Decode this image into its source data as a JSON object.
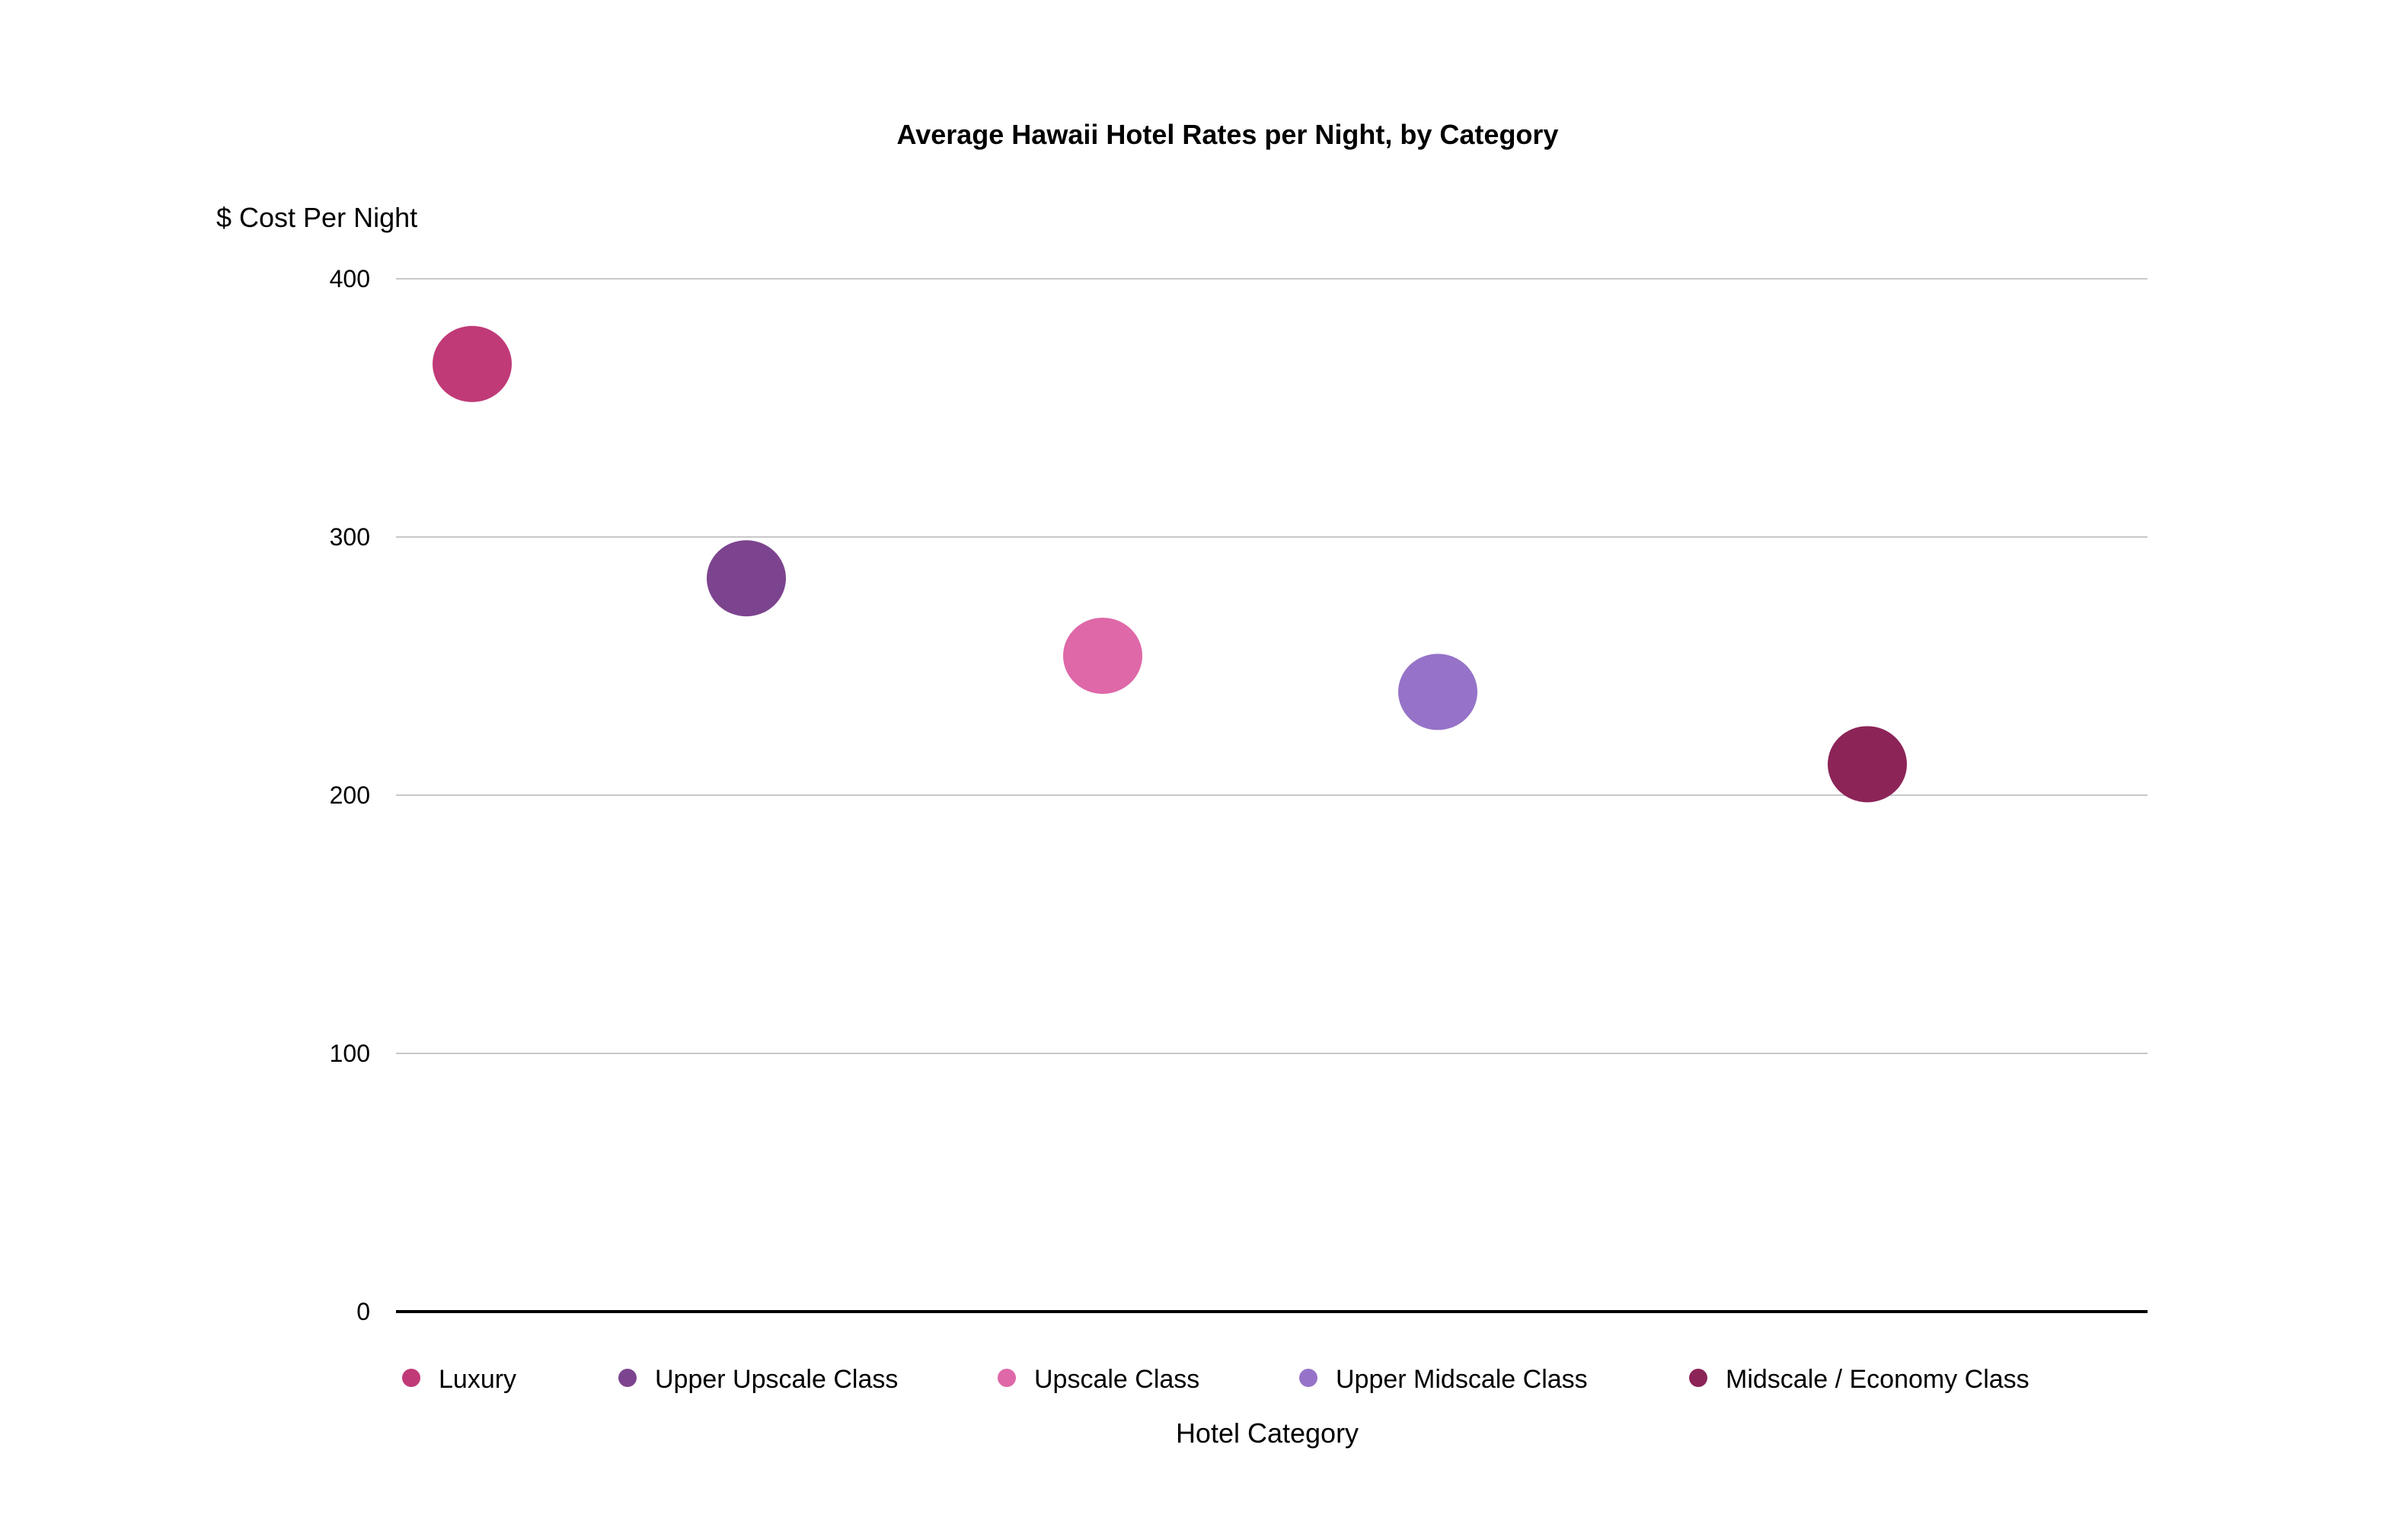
{
  "chart_data": {
    "type": "scatter",
    "title": "Average Hawaii Hotel Rates per Night, by Category",
    "xlabel": "Hotel Category",
    "ylabel": "$ Cost Per Night",
    "ylim": [
      0,
      400
    ],
    "yticks": [
      0,
      100,
      200,
      300,
      400
    ],
    "grid": true,
    "legend_position": "bottom",
    "series": [
      {
        "name": "Luxury",
        "x": 1,
        "value": 367,
        "color": "#c03a78"
      },
      {
        "name": "Upper Upscale Class",
        "x": 2,
        "value": 284,
        "color": "#7c448e"
      },
      {
        "name": "Upscale Class",
        "x": 3,
        "value": 254,
        "color": "#de68a8"
      },
      {
        "name": "Upper Midscale Class",
        "x": 4,
        "value": 240,
        "color": "#9673c8"
      },
      {
        "name": "Midscale / Economy Class",
        "x": 5,
        "value": 212,
        "color": "#8c2458"
      }
    ]
  }
}
